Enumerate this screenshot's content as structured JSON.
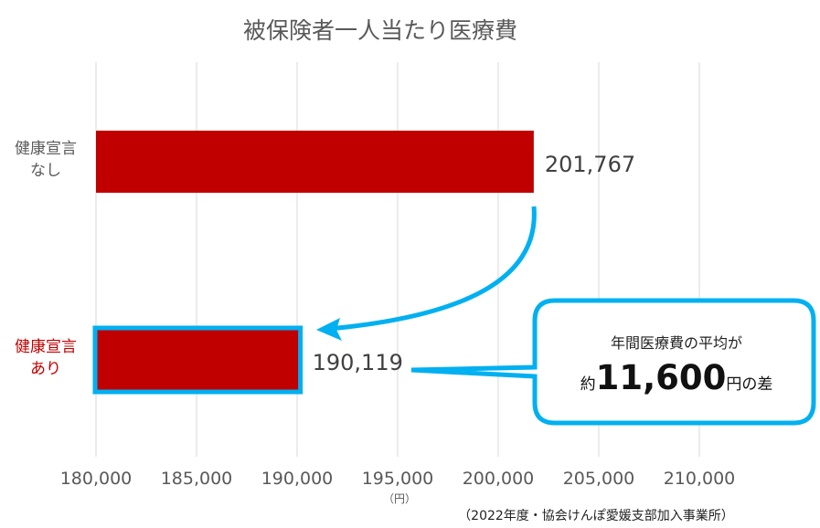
{
  "chart_data": {
    "type": "bar",
    "orientation": "horizontal",
    "title": "被保険者一人当たり医療費",
    "categories": [
      "健康宣言なし",
      "健康宣言あり"
    ],
    "category_lines": [
      [
        "健康宣言",
        "なし"
      ],
      [
        "健康宣言",
        "あり"
      ]
    ],
    "values": [
      201767,
      190119
    ],
    "data_labels": [
      "201,767",
      "190,119"
    ],
    "xlim": [
      180000,
      212000
    ],
    "xticks": [
      180000,
      185000,
      190000,
      195000,
      200000,
      205000,
      210000
    ],
    "xtick_labels": [
      "180,000",
      "185,000",
      "190,000",
      "195,000",
      "200,000",
      "205,000",
      "210,000"
    ],
    "xunit": "（円）",
    "grid": "vertical",
    "bar_color": "#C00000",
    "highlight_color": "#00B0F0",
    "label_colors": [
      "#595959",
      "#C00000"
    ],
    "callout": {
      "line1": "年間医療費の平均が",
      "prefix": "約",
      "amount": "11,600",
      "suffix": "円の差"
    },
    "source": "（2022年度・協会けんぽ愛媛支部加入事業所）"
  }
}
